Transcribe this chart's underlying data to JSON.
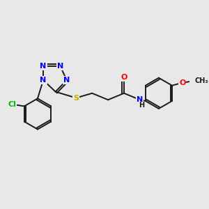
{
  "background_color": "#e8e8e8",
  "bond_color": "#1a1a1a",
  "atom_colors": {
    "N": "#0000ff",
    "O": "#ff0000",
    "S": "#ccaa00",
    "Cl": "#00bb00",
    "C": "#1a1a1a",
    "H": "#1a1a1a"
  },
  "figsize": [
    3.0,
    3.0
  ],
  "dpi": 100,
  "xlim": [
    0,
    10
  ],
  "ylim": [
    0,
    10
  ]
}
